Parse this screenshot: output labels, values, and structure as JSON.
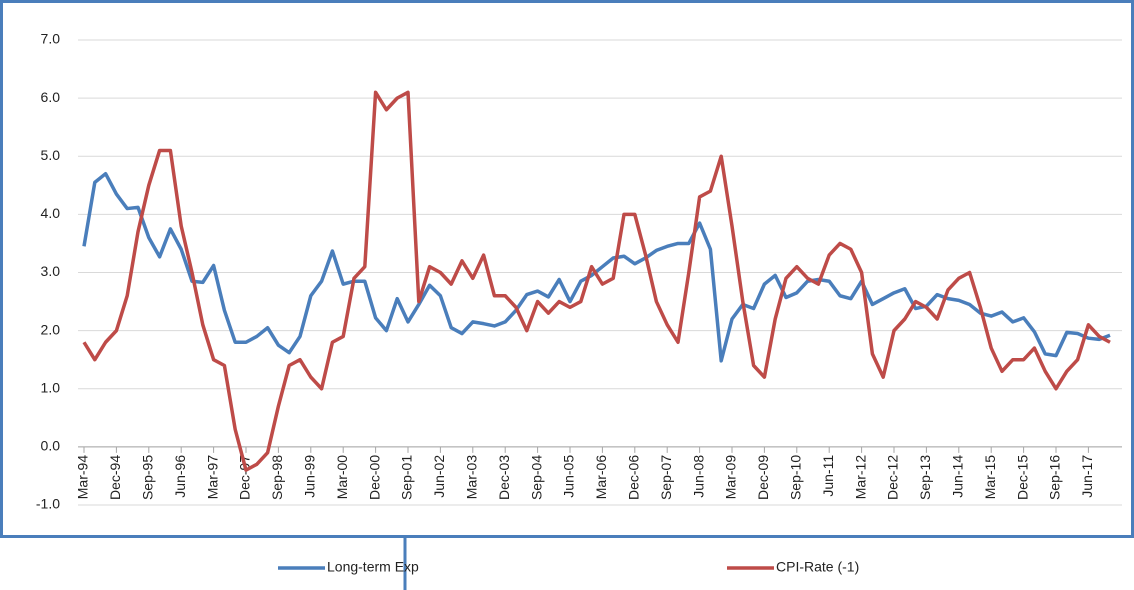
{
  "chart_data": {
    "type": "line",
    "categories": [
      "Mar-94",
      null,
      null,
      "Dec-94",
      null,
      null,
      "Sep-95",
      null,
      null,
      "Jun-96",
      null,
      null,
      "Mar-97",
      null,
      null,
      "Dec-97",
      null,
      null,
      "Sep-98",
      null,
      null,
      "Jun-99",
      null,
      null,
      "Mar-00",
      null,
      null,
      "Dec-00",
      null,
      null,
      "Sep-01",
      null,
      null,
      "Jun-02",
      null,
      null,
      "Mar-03",
      null,
      null,
      "Dec-03",
      null,
      null,
      "Sep-04",
      null,
      null,
      "Jun-05",
      null,
      null,
      "Mar-06",
      null,
      null,
      "Dec-06",
      null,
      null,
      "Sep-07",
      null,
      null,
      "Jun-08",
      null,
      null,
      "Mar-09",
      null,
      null,
      "Dec-09",
      null,
      null,
      "Sep-10",
      null,
      null,
      "Jun-11",
      null,
      null,
      "Mar-12",
      null,
      null,
      "Dec-12",
      null,
      null,
      "Sep-13",
      null,
      null,
      "Jun-14",
      null,
      null,
      "Mar-15",
      null,
      null,
      "Dec-15",
      null,
      null,
      "Sep-16",
      null,
      null,
      "Jun-17",
      null,
      null
    ],
    "series": [
      {
        "name": "Long-term Exp",
        "color": "#4a7ebb",
        "values": [
          3.45,
          4.55,
          4.7,
          4.35,
          4.1,
          4.12,
          3.6,
          3.27,
          3.75,
          3.4,
          2.85,
          2.83,
          3.12,
          2.35,
          1.8,
          1.8,
          1.9,
          2.05,
          1.75,
          1.62,
          1.9,
          2.6,
          2.85,
          3.37,
          2.8,
          2.85,
          2.85,
          2.22,
          2.0,
          2.55,
          2.15,
          2.45,
          2.78,
          2.6,
          2.05,
          1.95,
          2.15,
          2.12,
          2.08,
          2.15,
          2.35,
          2.62,
          2.68,
          2.58,
          2.88,
          2.5,
          2.85,
          2.95,
          3.1,
          3.25,
          3.28,
          3.15,
          3.25,
          3.38,
          3.45,
          3.5,
          3.5,
          3.85,
          3.4,
          1.48,
          2.2,
          2.45,
          2.38,
          2.8,
          2.95,
          2.57,
          2.65,
          2.85,
          2.88,
          2.85,
          2.6,
          2.55,
          2.85,
          2.45,
          2.55,
          2.65,
          2.72,
          2.38,
          2.42,
          2.62,
          2.55,
          2.52,
          2.45,
          2.3,
          2.25,
          2.32,
          2.15,
          2.22,
          1.98,
          1.6,
          1.57,
          1.97,
          1.95,
          1.87,
          1.85,
          1.92
        ]
      },
      {
        "name": "CPI-Rate (-1)",
        "color": "#be4b48",
        "values": [
          1.8,
          1.5,
          1.8,
          2.0,
          2.6,
          3.7,
          4.5,
          5.1,
          5.1,
          3.8,
          3.0,
          2.1,
          1.5,
          1.4,
          0.3,
          -0.4,
          -0.3,
          -0.1,
          0.7,
          1.4,
          1.5,
          1.2,
          1.0,
          1.8,
          1.9,
          2.9,
          3.1,
          6.1,
          5.8,
          6.0,
          6.1,
          2.5,
          3.1,
          3.0,
          2.8,
          3.2,
          2.9,
          3.3,
          2.6,
          2.6,
          2.4,
          2.0,
          2.5,
          2.3,
          2.5,
          2.4,
          2.5,
          3.1,
          2.8,
          2.9,
          4.0,
          4.0,
          3.3,
          2.5,
          2.1,
          1.8,
          3.0,
          4.3,
          4.4,
          5.0,
          3.8,
          2.5,
          1.4,
          1.2,
          2.2,
          2.9,
          3.1,
          2.9,
          2.8,
          3.3,
          3.5,
          3.4,
          3.0,
          1.6,
          1.2,
          2.0,
          2.2,
          2.5,
          2.4,
          2.2,
          2.7,
          2.9,
          3.0,
          2.4,
          1.7,
          1.3,
          1.5,
          1.5,
          1.7,
          1.3,
          1.0,
          1.3,
          1.5,
          2.1,
          1.9,
          1.8
        ]
      }
    ],
    "ylim": [
      -1,
      7
    ],
    "yticks": [
      {
        "value": -1,
        "label": "-1.0"
      },
      {
        "value": 0,
        "label": "0.0"
      },
      {
        "value": 1,
        "label": "1.0"
      },
      {
        "value": 2,
        "label": "2.0"
      },
      {
        "value": 3,
        "label": "3.0"
      },
      {
        "value": 4,
        "label": "4.0"
      },
      {
        "value": 5,
        "label": "5.0"
      },
      {
        "value": 6,
        "label": "6.0"
      },
      {
        "value": 7,
        "label": "7.0"
      }
    ],
    "grid": true
  }
}
